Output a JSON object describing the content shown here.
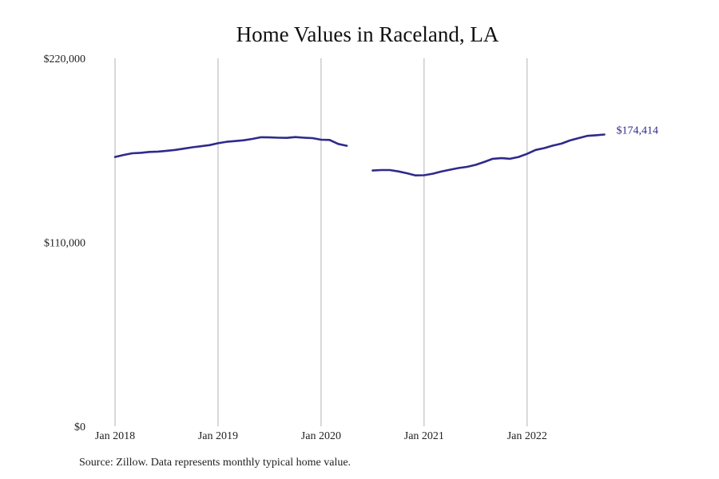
{
  "chart_data": {
    "type": "line",
    "title": "Home Values in Raceland, LA",
    "xlabel": "",
    "ylabel": "",
    "ylim": [
      0,
      220000
    ],
    "xlim": [
      "2018-01",
      "2022-12"
    ],
    "y_ticks": [
      {
        "value": 0,
        "label": "$0"
      },
      {
        "value": 110000,
        "label": "$110,000"
      },
      {
        "value": 220000,
        "label": "$220,000"
      }
    ],
    "x_ticks": [
      {
        "value": "2018-01",
        "label": "Jan 2018"
      },
      {
        "value": "2019-01",
        "label": "Jan 2019"
      },
      {
        "value": "2020-01",
        "label": "Jan 2020"
      },
      {
        "value": "2021-01",
        "label": "Jan 2021"
      },
      {
        "value": "2022-01",
        "label": "Jan 2022"
      }
    ],
    "grid": {
      "vertical": true,
      "horizontal": false
    },
    "line_color": "#2e2a8c",
    "grid_color": "#b3b3b3",
    "end_label": "$174,414",
    "series": [
      {
        "segments": [
          {
            "x": [
              "2018-01",
              "2018-02",
              "2018-03",
              "2018-04",
              "2018-05",
              "2018-06",
              "2018-07",
              "2018-08",
              "2018-09",
              "2018-10",
              "2018-11",
              "2018-12",
              "2019-01",
              "2019-02",
              "2019-03",
              "2019-04",
              "2019-05",
              "2019-06",
              "2019-07",
              "2019-08",
              "2019-09",
              "2019-10",
              "2019-11",
              "2019-12",
              "2020-01",
              "2020-02",
              "2020-03",
              "2020-04"
            ],
            "y": [
              161000,
              162200,
              163200,
              163500,
              164000,
              164200,
              164700,
              165200,
              166000,
              166800,
              167400,
              168100,
              169200,
              170100,
              170500,
              171000,
              171800,
              172800,
              172700,
              172500,
              172400,
              172900,
              172500,
              172300,
              171300,
              171200,
              168800,
              167700
            ]
          },
          {
            "x": [
              "2020-07",
              "2020-08",
              "2020-09",
              "2020-10",
              "2020-11",
              "2020-12",
              "2021-01",
              "2021-02",
              "2021-03",
              "2021-04",
              "2021-05",
              "2021-06",
              "2021-07",
              "2021-08",
              "2021-09",
              "2021-10",
              "2021-11",
              "2021-12",
              "2022-01",
              "2022-02",
              "2022-03",
              "2022-04",
              "2022-05",
              "2022-06",
              "2022-07",
              "2022-08",
              "2022-09",
              "2022-10",
              "2022-11",
              "2022-12"
            ],
            "y": [
              152900,
              153200,
              153200,
              152400,
              151300,
              150000,
              150100,
              151000,
              152300,
              153400,
              154400,
              155100,
              156300,
              158000,
              159900,
              160300,
              159900,
              161000,
              162900,
              165200,
              166300,
              167800,
              169000,
              170900,
              172300,
              173600,
              174000,
              174414,
              null,
              null
            ]
          }
        ]
      }
    ]
  },
  "footer": {
    "source": "Source: Zillow. Data represents monthly typical home value."
  }
}
